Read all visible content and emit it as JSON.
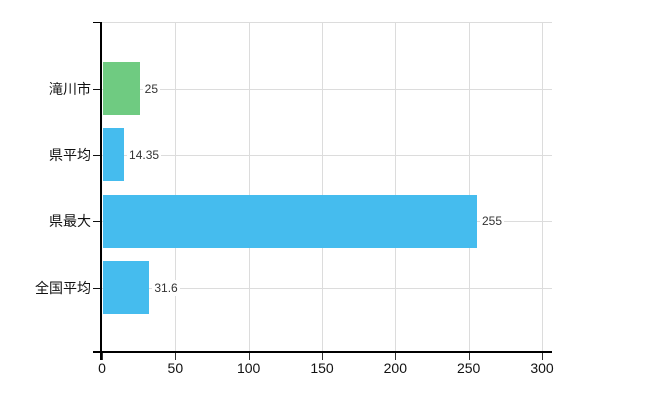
{
  "chart": {
    "background": "#ffffff",
    "grid_color": "#dcdcdc",
    "axis_color": "#000000",
    "tick_color": "#333333",
    "label_color": "#111111",
    "value_label_color": "#333333"
  },
  "chart_data": {
    "type": "bar",
    "orientation": "horizontal",
    "title": "",
    "xlabel": "",
    "ylabel": "",
    "categories": [
      "滝川市",
      "県平均",
      "県最大",
      "全国平均"
    ],
    "values": [
      25,
      14.35,
      255,
      31.6
    ],
    "value_labels": [
      "25",
      "14.35",
      "255",
      "31.6"
    ],
    "bar_colors": [
      "#6fcb81",
      "#45bcee",
      "#45bcee",
      "#45bcee"
    ],
    "xlim": [
      0,
      300
    ],
    "xticks": [
      0,
      50,
      100,
      150,
      200,
      250,
      300
    ],
    "grid": true,
    "legend": false
  }
}
